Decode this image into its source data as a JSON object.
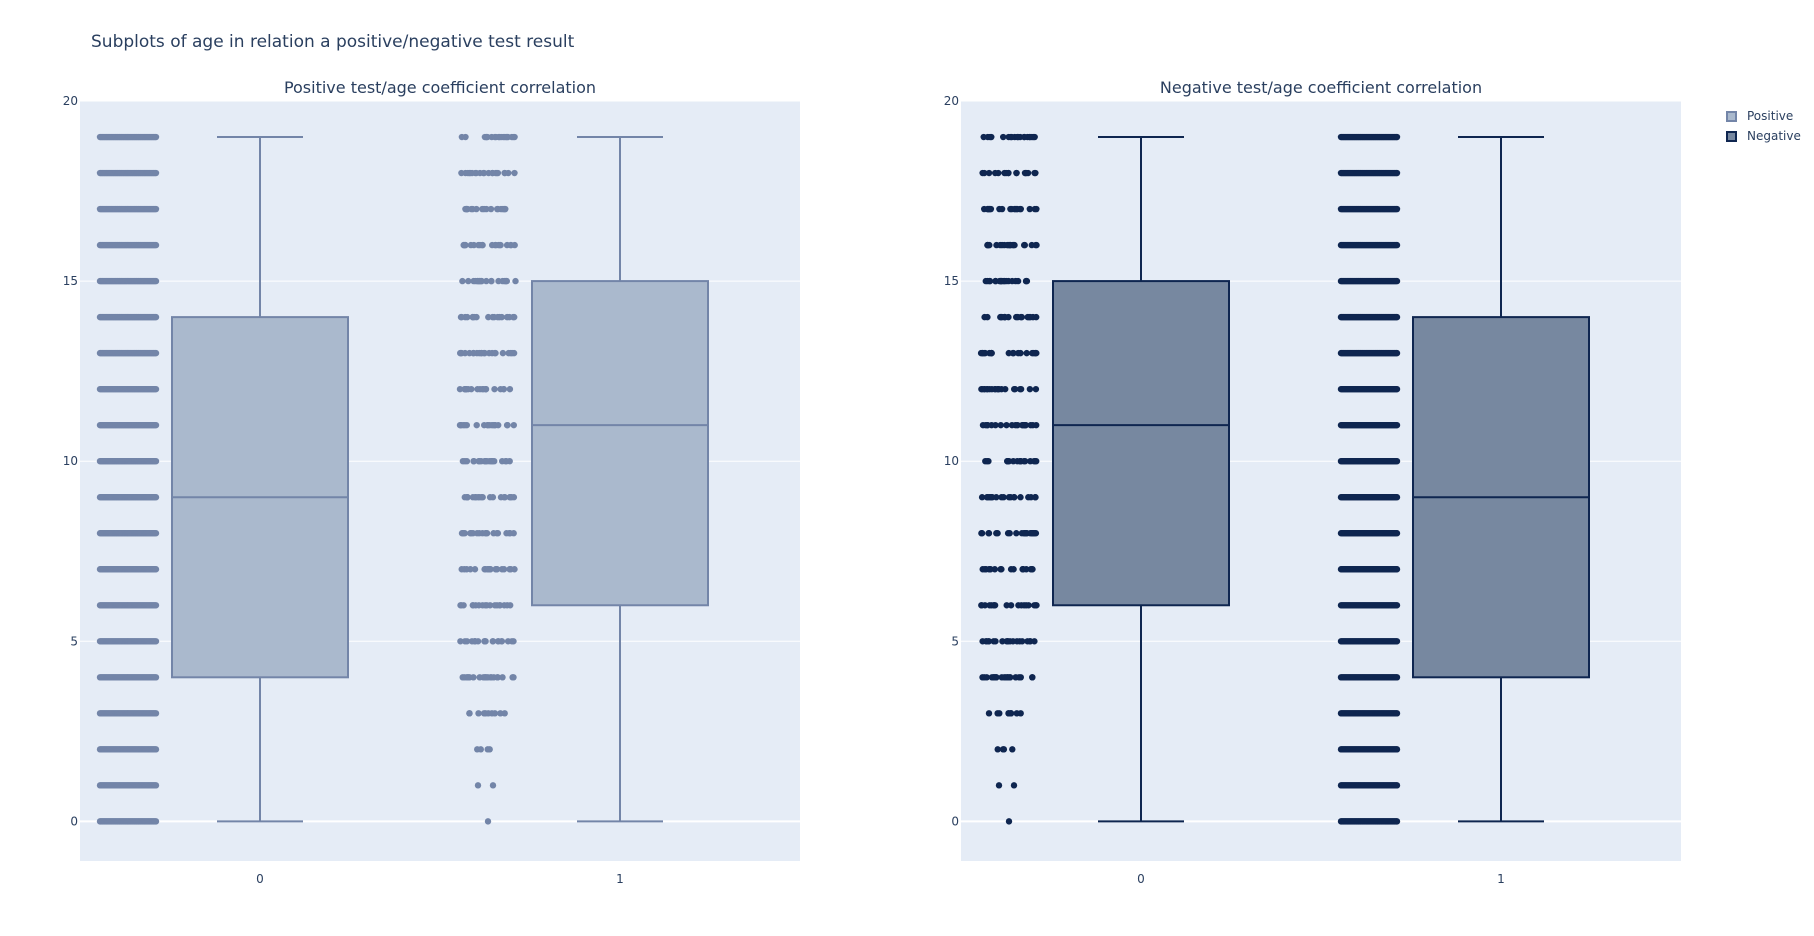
{
  "title": "Subplots of age in relation a positive/negative test result",
  "colors": {
    "plot_bg": "#e5ecf6",
    "grid": "#ffffff",
    "positive_line": "#7385a8",
    "positive_fill": "#aab9cd",
    "positive_points": "#7385a8",
    "negative_line": "#0f2650",
    "negative_fill": "#7788a0",
    "negative_points": "#0f2650"
  },
  "legend": {
    "items": [
      {
        "label": "Positive",
        "series": "positive"
      },
      {
        "label": "Negative",
        "series": "negative"
      }
    ]
  },
  "chart_data": [
    {
      "type": "box",
      "title": "Positive test/age coefficient correlation",
      "series": "positive",
      "categories": [
        "0",
        "1"
      ],
      "ylim": [
        -1.1,
        20
      ],
      "yticks": [
        0,
        5,
        10,
        15,
        20
      ],
      "grid": true,
      "boxes": [
        {
          "category": "0",
          "min": 0,
          "q1": 4,
          "median": 9,
          "q3": 14,
          "max": 19,
          "points": [
            0,
            1,
            2,
            3,
            4,
            5,
            6,
            7,
            8,
            9,
            10,
            11,
            12,
            13,
            14,
            15,
            16,
            17,
            18,
            19
          ],
          "point_density": "dense"
        },
        {
          "category": "1",
          "min": 0,
          "q1": 6,
          "median": 11,
          "q3": 15,
          "max": 19,
          "points": [
            0,
            1,
            2,
            3,
            4,
            5,
            6,
            7,
            8,
            9,
            10,
            11,
            12,
            13,
            14,
            15,
            16,
            17,
            18,
            19
          ],
          "point_density": "sparse"
        }
      ]
    },
    {
      "type": "box",
      "title": "Negative test/age coefficient correlation",
      "series": "negative",
      "categories": [
        "0",
        "1"
      ],
      "ylim": [
        -1.1,
        20
      ],
      "yticks": [
        0,
        5,
        10,
        15,
        20
      ],
      "grid": true,
      "boxes": [
        {
          "category": "0",
          "min": 0,
          "q1": 6,
          "median": 11,
          "q3": 15,
          "max": 19,
          "points": [
            0,
            1,
            2,
            3,
            4,
            5,
            6,
            7,
            8,
            9,
            10,
            11,
            12,
            13,
            14,
            15,
            16,
            17,
            18,
            19
          ],
          "point_density": "sparse"
        },
        {
          "category": "1",
          "min": 0,
          "q1": 4,
          "median": 9,
          "q3": 14,
          "max": 19,
          "points": [
            0,
            1,
            2,
            3,
            4,
            5,
            6,
            7,
            8,
            9,
            10,
            11,
            12,
            13,
            14,
            15,
            16,
            17,
            18,
            19
          ],
          "point_density": "dense"
        }
      ]
    }
  ]
}
